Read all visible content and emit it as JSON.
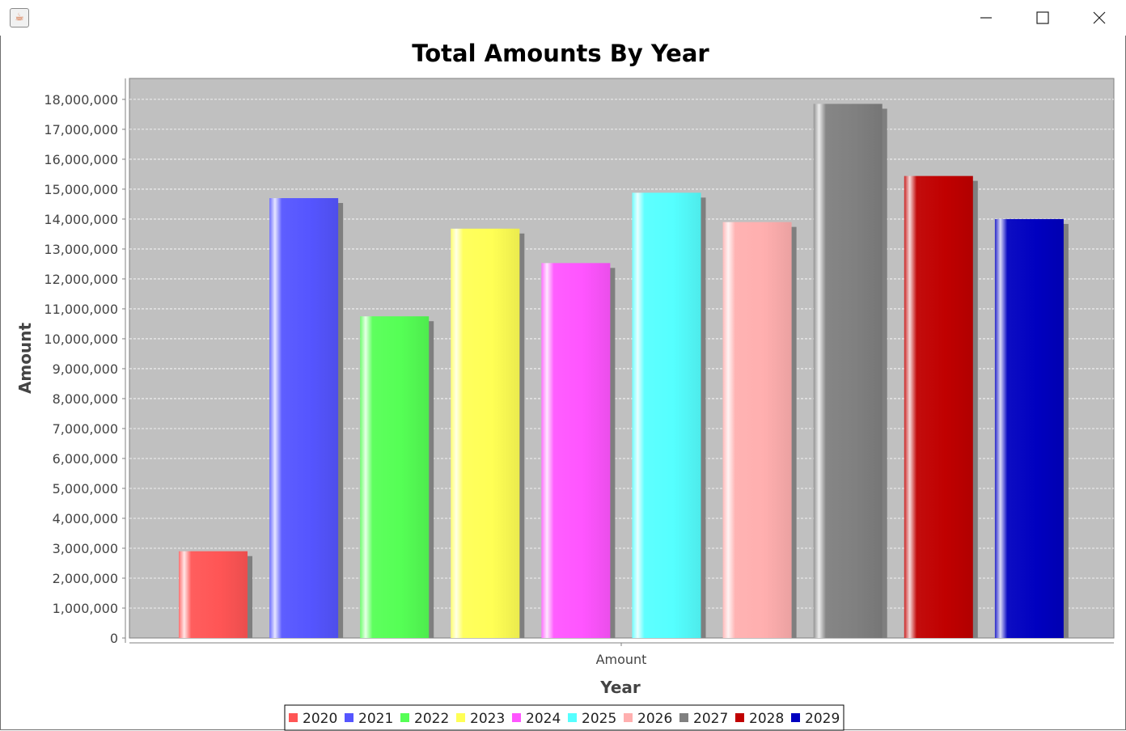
{
  "window": {
    "icon": "java-cup-icon",
    "controls": [
      "minimize-icon",
      "maximize-icon",
      "close-icon"
    ]
  },
  "chart_data": {
    "type": "bar",
    "title": "Total Amounts By Year",
    "xlabel": "Year",
    "ylabel": "Amount",
    "categories": [
      "Amount"
    ],
    "series": [
      {
        "name": "2020",
        "color": "#ff5555",
        "values": [
          2900000
        ]
      },
      {
        "name": "2021",
        "color": "#5555ff",
        "values": [
          14700000
        ]
      },
      {
        "name": "2022",
        "color": "#55ff55",
        "values": [
          10750000
        ]
      },
      {
        "name": "2023",
        "color": "#ffff55",
        "values": [
          13680000
        ]
      },
      {
        "name": "2024",
        "color": "#ff55ff",
        "values": [
          12530000
        ]
      },
      {
        "name": "2025",
        "color": "#55ffff",
        "values": [
          14880000
        ]
      },
      {
        "name": "2026",
        "color": "#ffafaf",
        "values": [
          13900000
        ]
      },
      {
        "name": "2027",
        "color": "#808080",
        "values": [
          17850000
        ]
      },
      {
        "name": "2028",
        "color": "#c00000",
        "values": [
          15440000
        ]
      },
      {
        "name": "2029",
        "color": "#0000c0",
        "values": [
          14000000
        ]
      }
    ],
    "ylim": [
      0,
      18700000
    ],
    "yticks": [
      0,
      1000000,
      2000000,
      3000000,
      4000000,
      5000000,
      6000000,
      7000000,
      8000000,
      9000000,
      10000000,
      11000000,
      12000000,
      13000000,
      14000000,
      15000000,
      16000000,
      17000000,
      18000000
    ],
    "ytick_labels": [
      "0",
      "1,000,000",
      "2,000,000",
      "3,000,000",
      "4,000,000",
      "5,000,000",
      "6,000,000",
      "7,000,000",
      "8,000,000",
      "9,000,000",
      "10,000,000",
      "11,000,000",
      "12,000,000",
      "13,000,000",
      "14,000,000",
      "15,000,000",
      "16,000,000",
      "17,000,000",
      "18,000,000"
    ],
    "grid": true,
    "legend_position": "bottom",
    "plot_background": "#c0c0c0",
    "gridline_color": "#ffffff"
  }
}
